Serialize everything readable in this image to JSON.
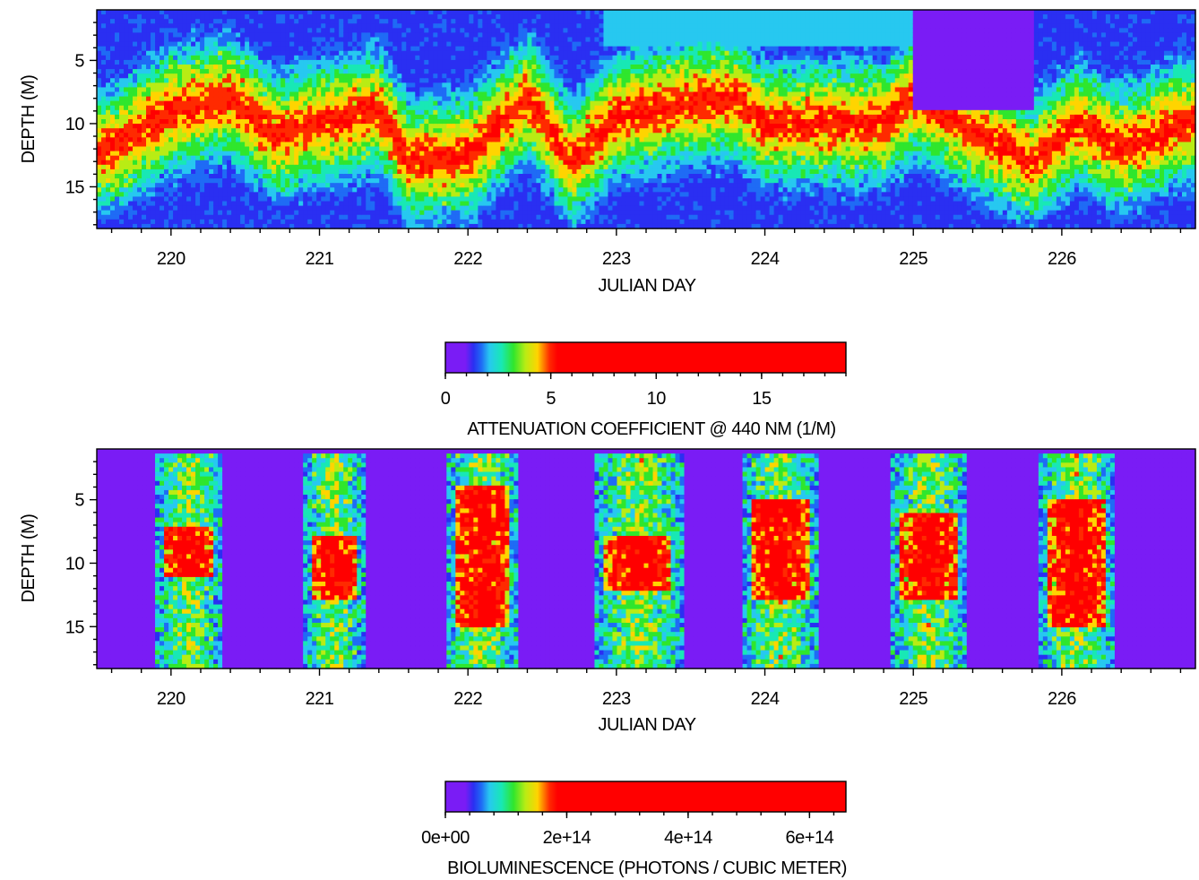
{
  "colors": {
    "scale": [
      "#7a1cf5",
      "#2a2ff2",
      "#1f6bf5",
      "#27c8f0",
      "#18e8b5",
      "#2fe62d",
      "#b9ec14",
      "#ffd400",
      "#ff2a00",
      "#ff0000"
    ]
  },
  "chart_data": [
    {
      "type": "heatmap",
      "xlabel": "JULIAN DAY",
      "ylabel": "DEPTH (M)",
      "xlim": [
        219.5,
        226.9
      ],
      "ylim": [
        18.3,
        1.0
      ],
      "xticks": [
        "220",
        "221",
        "222",
        "223",
        "224",
        "225",
        "226"
      ],
      "xtick_values": [
        220,
        221,
        222,
        223,
        224,
        225,
        226
      ],
      "yticks": [
        "5",
        "10",
        "15"
      ],
      "ytick_values": [
        5,
        10,
        15
      ],
      "colorbar": {
        "label": "ATTENUATION COEFFICIENT @ 440 NM (1/M)",
        "range": [
          0,
          19
        ],
        "ticks": [
          "0",
          "5",
          "10",
          "15"
        ],
        "tick_values": [
          0,
          5,
          10,
          15
        ]
      },
      "description_values": {
        "peak_layer_depth_by_day": [
          [
            219.6,
            12
          ],
          [
            220.0,
            9
          ],
          [
            220.4,
            8
          ],
          [
            220.7,
            11
          ],
          [
            221.0,
            10
          ],
          [
            221.4,
            9
          ],
          [
            221.6,
            13
          ],
          [
            222.0,
            12.5
          ],
          [
            222.4,
            8
          ],
          [
            222.7,
            13
          ],
          [
            223.0,
            9.5
          ],
          [
            223.4,
            8.5
          ],
          [
            223.8,
            8
          ],
          [
            224.0,
            10
          ],
          [
            224.4,
            10
          ],
          [
            224.8,
            10
          ],
          [
            225.0,
            8
          ],
          [
            225.8,
            13
          ],
          [
            226.1,
            10
          ],
          [
            226.4,
            12
          ],
          [
            226.8,
            10
          ]
        ]
      }
    },
    {
      "type": "heatmap",
      "xlabel": "JULIAN DAY",
      "ylabel": "DEPTH (M)",
      "xlim": [
        219.5,
        226.9
      ],
      "ylim": [
        18.3,
        1.0
      ],
      "xticks": [
        "220",
        "221",
        "222",
        "223",
        "224",
        "225",
        "226"
      ],
      "xtick_values": [
        220,
        221,
        222,
        223,
        224,
        225,
        226
      ],
      "yticks": [
        "5",
        "10",
        "15"
      ],
      "yticks_values": [
        5,
        10,
        15
      ],
      "colorbar": {
        "label": "BIOLUMINESCENCE (PHOTONS / CUBIC METER)",
        "range": [
          0,
          660000000000000.0
        ],
        "ticks": [
          "0e+00",
          "2e+14",
          "4e+14",
          "6e+14"
        ],
        "tick_values": [
          0,
          200000000000000.0,
          400000000000000.0,
          600000000000000.0
        ]
      },
      "nightly_bands": [
        {
          "start": 219.9,
          "end": 220.35,
          "core_depth": [
            7,
            11
          ]
        },
        {
          "start": 220.9,
          "end": 221.3,
          "core_depth": [
            8,
            13
          ]
        },
        {
          "start": 221.85,
          "end": 222.35,
          "core_depth": [
            4,
            15
          ]
        },
        {
          "start": 222.85,
          "end": 223.45,
          "core_depth": [
            8,
            12
          ]
        },
        {
          "start": 223.85,
          "end": 224.35,
          "core_depth": [
            5,
            13
          ]
        },
        {
          "start": 224.85,
          "end": 225.35,
          "core_depth": [
            6,
            13
          ]
        },
        {
          "start": 225.85,
          "end": 226.35,
          "core_depth": [
            5,
            15
          ]
        }
      ]
    }
  ]
}
